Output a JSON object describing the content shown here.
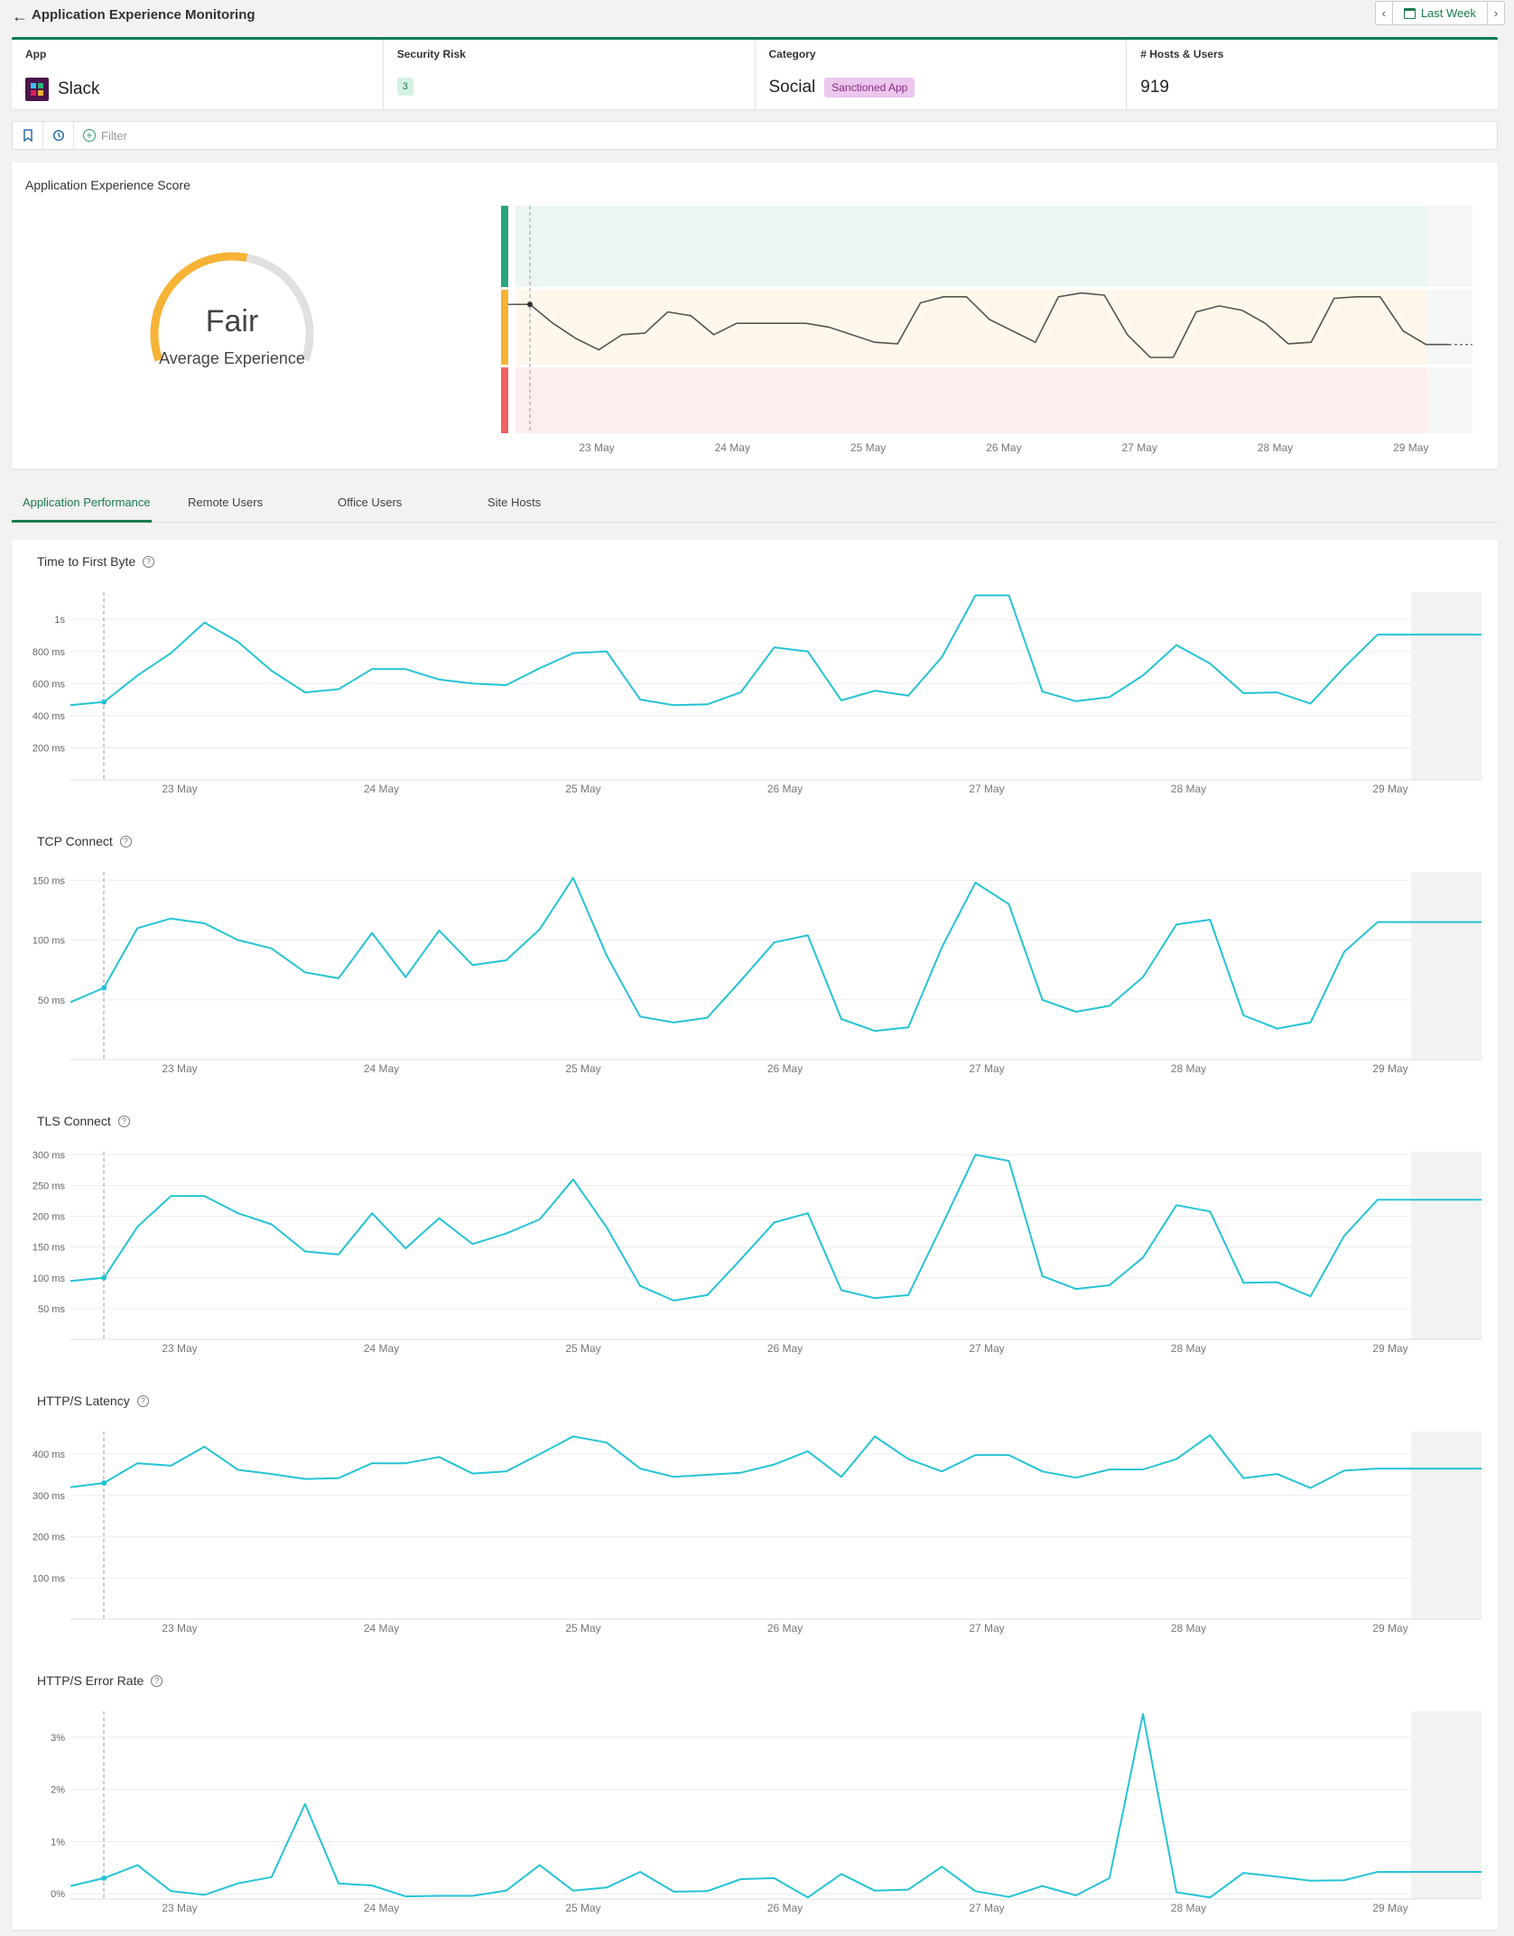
{
  "header": {
    "title": "Application Experience Monitoring",
    "back_icon": "arrow-left-icon",
    "date_range": "Last Week"
  },
  "info": {
    "app": {
      "label": "App",
      "value": "Slack"
    },
    "risk": {
      "label": "Security Risk",
      "value": "3"
    },
    "category": {
      "label": "Category",
      "value": "Social",
      "badge": "Sanctioned App"
    },
    "hosts": {
      "label": "# Hosts & Users",
      "value": "919"
    }
  },
  "filter": {
    "placeholder": "Filter"
  },
  "score": {
    "title": "Application Experience Score",
    "gauge_label": "Fair",
    "gauge_sub": "Average Experience",
    "gauge_fraction": 0.55
  },
  "tabs": [
    "Application Performance",
    "Remote Users",
    "Office Users",
    "Site Hosts"
  ],
  "colors": {
    "accent": "#1a7b4c",
    "line": "#25c3d5",
    "good": "#2ba57a",
    "fair": "#f7b335",
    "poor": "#f06262"
  },
  "x_labels": [
    "23 May",
    "24 May",
    "25 May",
    "26 May",
    "27 May",
    "28 May",
    "29 May"
  ],
  "chart_data": [
    {
      "type": "line",
      "title": "Application Experience Score",
      "bands": [
        "Good",
        "Fair",
        "Poor"
      ],
      "ylim": [
        0,
        3
      ],
      "y": [
        1.7,
        1.45,
        1.25,
        1.1,
        1.3,
        1.32,
        1.6,
        1.55,
        1.3,
        1.45,
        1.45,
        1.45,
        1.45,
        1.4,
        1.3,
        1.2,
        1.18,
        1.72,
        1.8,
        1.8,
        1.5,
        1.35,
        1.2,
        1.8,
        1.85,
        1.82,
        1.3,
        1.0,
        1.0,
        1.6,
        1.68,
        1.62,
        1.45,
        1.18,
        1.2,
        1.78,
        1.8,
        1.8,
        1.35,
        1.17,
        1.17
      ]
    },
    {
      "type": "line",
      "title": "Time to First Byte",
      "unit": "ms",
      "yticks": [
        {
          "v": 200,
          "l": "200 ms"
        },
        {
          "v": 400,
          "l": "400 ms"
        },
        {
          "v": 600,
          "l": "600 ms"
        },
        {
          "v": 800,
          "l": "800 ms"
        },
        {
          "v": 1000,
          "l": "1s"
        }
      ],
      "ylim": [
        0,
        1170
      ],
      "y": [
        465,
        485,
        650,
        790,
        980,
        860,
        680,
        545,
        565,
        690,
        690,
        625,
        600,
        590,
        695,
        790,
        800,
        500,
        465,
        470,
        545,
        825,
        800,
        495,
        555,
        525,
        765,
        1150,
        1150,
        550,
        490,
        515,
        650,
        840,
        725,
        540,
        545,
        475,
        700,
        905,
        905
      ]
    },
    {
      "type": "line",
      "title": "TCP Connect",
      "unit": "ms",
      "yticks": [
        {
          "v": 50,
          "l": "50 ms"
        },
        {
          "v": 100,
          "l": "100 ms"
        },
        {
          "v": 150,
          "l": "150 ms"
        }
      ],
      "ylim": [
        0,
        157
      ],
      "y": [
        48,
        60,
        110,
        118,
        114,
        100,
        93,
        73,
        68,
        106,
        69,
        108,
        79,
        83,
        109,
        152,
        87,
        36,
        31,
        35,
        66,
        98,
        104,
        34,
        24,
        27,
        94,
        148,
        130,
        50,
        40,
        45,
        69,
        113,
        117,
        37,
        26,
        31,
        90,
        115,
        115
      ]
    },
    {
      "type": "line",
      "title": "TLS Connect",
      "unit": "ms",
      "yticks": [
        {
          "v": 50,
          "l": "50 ms"
        },
        {
          "v": 100,
          "l": "100 ms"
        },
        {
          "v": 150,
          "l": "150 ms"
        },
        {
          "v": 200,
          "l": "200 ms"
        },
        {
          "v": 250,
          "l": "250 ms"
        },
        {
          "v": 300,
          "l": "300 ms"
        }
      ],
      "ylim": [
        0,
        305
      ],
      "y": [
        95,
        100,
        183,
        233,
        233,
        205,
        187,
        143,
        138,
        205,
        148,
        197,
        155,
        172,
        195,
        260,
        182,
        87,
        63,
        72,
        130,
        190,
        205,
        80,
        67,
        72,
        185,
        300,
        290,
        103,
        82,
        88,
        133,
        218,
        208,
        92,
        93,
        70,
        168,
        227,
        227
      ]
    },
    {
      "type": "line",
      "title": "HTTP/S Latency",
      "unit": "ms",
      "yticks": [
        {
          "v": 100,
          "l": "100 ms"
        },
        {
          "v": 200,
          "l": "200 ms"
        },
        {
          "v": 300,
          "l": "300 ms"
        },
        {
          "v": 400,
          "l": "400 ms"
        }
      ],
      "ylim": [
        0,
        455
      ],
      "y": [
        320,
        330,
        378,
        372,
        418,
        362,
        352,
        340,
        342,
        378,
        378,
        393,
        353,
        358,
        400,
        443,
        428,
        365,
        345,
        350,
        355,
        375,
        407,
        345,
        443,
        388,
        358,
        398,
        398,
        358,
        343,
        363,
        363,
        388,
        446,
        342,
        352,
        318,
        360,
        365,
        365
      ]
    },
    {
      "type": "line",
      "title": "HTTP/S Error Rate",
      "unit": "%",
      "yticks": [
        {
          "v": 0,
          "l": "0%"
        },
        {
          "v": 1,
          "l": "1%"
        },
        {
          "v": 2,
          "l": "2%"
        },
        {
          "v": 3,
          "l": "3%"
        }
      ],
      "ylim": [
        -0.1,
        3.5
      ],
      "y": [
        0.15,
        0.3,
        0.55,
        0.05,
        -0.02,
        0.2,
        0.32,
        1.72,
        0.2,
        0.16,
        -0.05,
        -0.04,
        -0.04,
        0.06,
        0.55,
        0.06,
        0.12,
        0.42,
        0.04,
        0.05,
        0.28,
        0.3,
        -0.07,
        0.38,
        0.06,
        0.08,
        0.52,
        0.05,
        -0.06,
        0.15,
        -0.03,
        0.3,
        3.45,
        0.03,
        -0.07,
        0.4,
        0.33,
        0.25,
        0.26,
        0.42,
        0.42
      ]
    }
  ]
}
